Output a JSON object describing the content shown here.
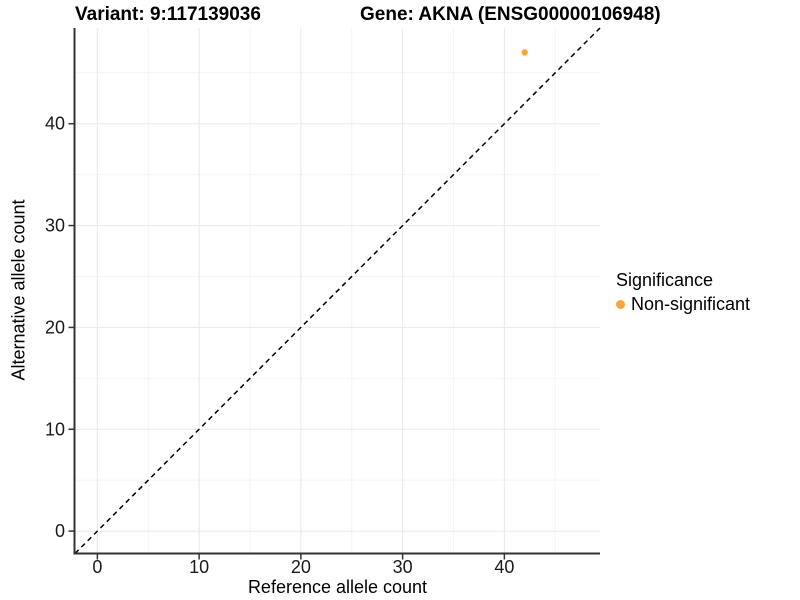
{
  "titles": {
    "left": "Variant: 9:117139036",
    "right": "Gene: AKNA (ENSG00000106948)"
  },
  "chart_data": {
    "type": "scatter",
    "xlabel": "Reference allele count",
    "ylabel": "Alternative allele count",
    "axis_min": -2.2,
    "axis_max": 49.4,
    "x_ticks": [
      0,
      10,
      20,
      30,
      40
    ],
    "y_ticks": [
      0,
      10,
      20,
      30,
      40
    ],
    "minor_ticks": [
      5,
      15,
      25,
      35,
      45
    ],
    "grid": true,
    "identity_line": {
      "style": "dashed",
      "color": "#000000",
      "slope": 1,
      "intercept": 0
    },
    "series": [
      {
        "name": "Non-significant",
        "color": "#FAA43A",
        "points": [
          {
            "x": 42,
            "y": 47
          }
        ]
      }
    ],
    "legend_position": "right"
  },
  "legend": {
    "title": "Significance",
    "items": [
      {
        "label": "Non-significant",
        "color": "#FAA43A"
      }
    ]
  },
  "colors": {
    "axis": "#333333",
    "tick_label": "#1a1a1a",
    "grid_major": "#e8e8e8",
    "grid_minor": "#f4f4f4",
    "background": "#ffffff"
  }
}
